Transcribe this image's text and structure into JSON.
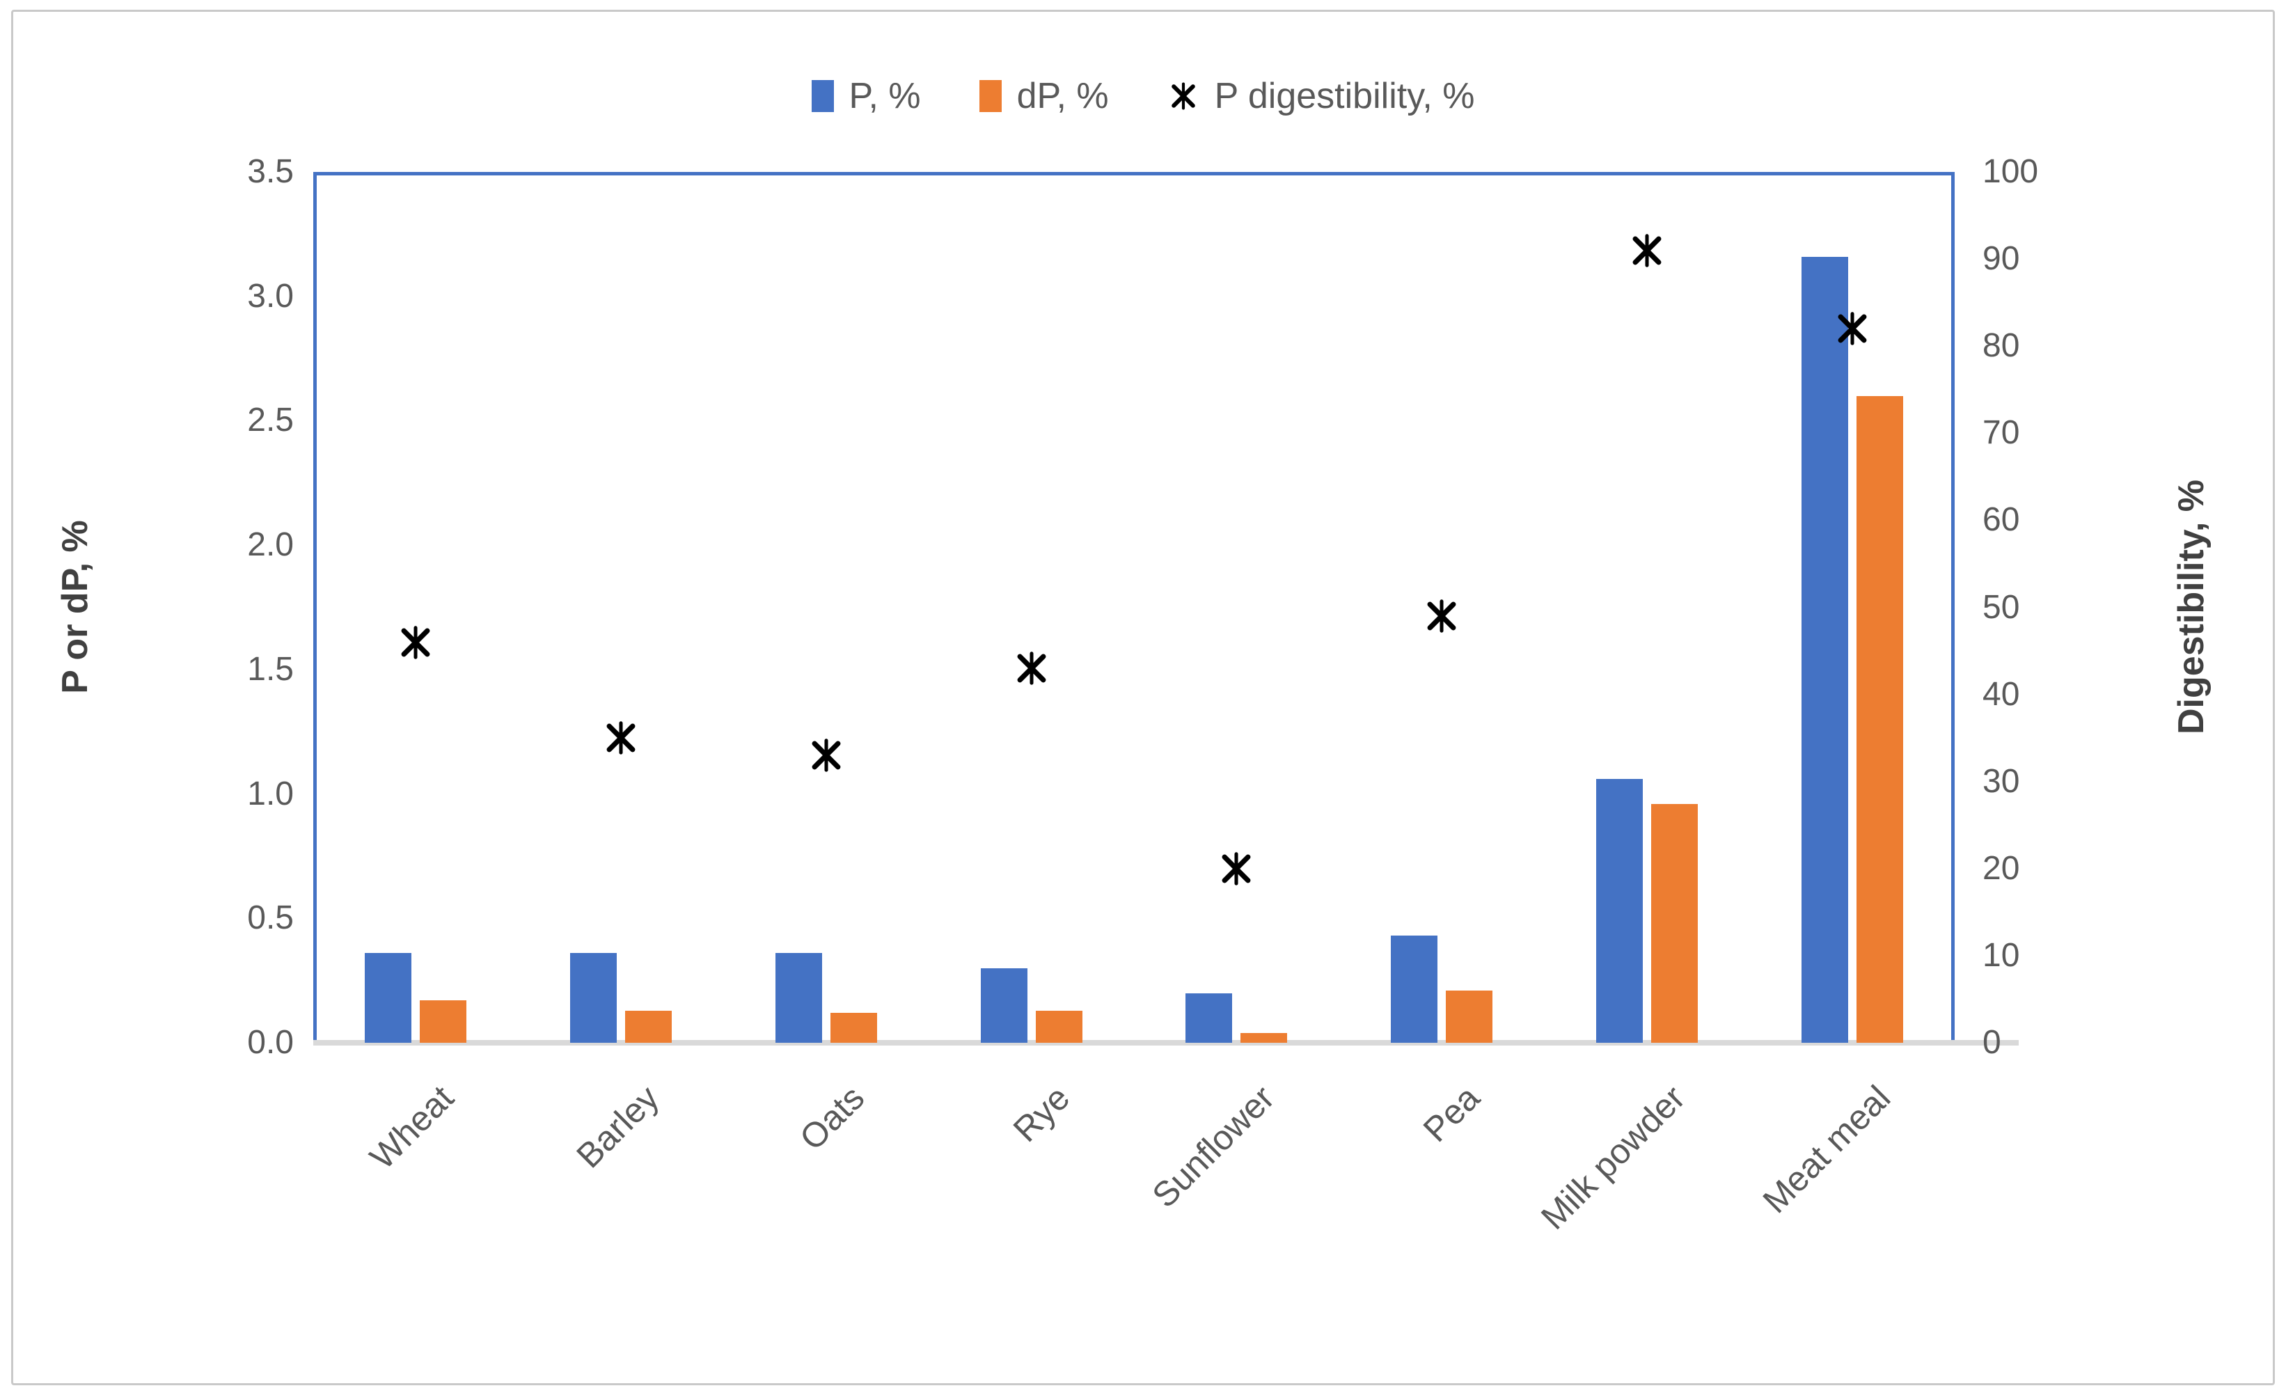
{
  "figure": {
    "legend": [
      {
        "label": "P, %",
        "swatch": "square",
        "color": "#4472C4"
      },
      {
        "label": "dP, %",
        "swatch": "square",
        "color": "#ED7D31"
      },
      {
        "label": "P digestibility, %",
        "swatch": "asterisk",
        "color": "#000000"
      }
    ],
    "left_axis": {
      "title": "P or dP, %",
      "ticks": [
        "0.0",
        "0.5",
        "1.0",
        "1.5",
        "2.0",
        "2.5",
        "3.0",
        "3.5"
      ],
      "min": 0,
      "max": 3.5
    },
    "right_axis": {
      "title": "Digestibility, %",
      "ticks": [
        "0",
        "10",
        "20",
        "30",
        "40",
        "50",
        "60",
        "70",
        "80",
        "90",
        "100"
      ],
      "min": 0,
      "max": 100
    }
  },
  "chart_data": {
    "type": "bar",
    "subtype": "combo-bar-scatter",
    "categories": [
      "Wheat",
      "Barley",
      "Oats",
      "Rye",
      "Sunflower",
      "Pea",
      "Milk powder",
      "Meat meal"
    ],
    "series": [
      {
        "name": "P, %",
        "type": "bar",
        "axis": "left",
        "color": "#4472C4",
        "values": [
          0.36,
          0.36,
          0.36,
          0.3,
          0.2,
          0.43,
          1.06,
          3.16
        ]
      },
      {
        "name": "dP, %",
        "type": "bar",
        "axis": "left",
        "color": "#ED7D31",
        "values": [
          0.17,
          0.13,
          0.12,
          0.13,
          0.04,
          0.21,
          0.96,
          2.6
        ]
      },
      {
        "name": "P digestibility, %",
        "type": "scatter",
        "marker": "asterisk",
        "axis": "right",
        "color": "#000000",
        "values": [
          46,
          35,
          33,
          43,
          20,
          49,
          91,
          82
        ]
      }
    ],
    "title": "",
    "xlabel": "",
    "ylabel_left": "P or dP, %",
    "ylabel_right": "Digestibility, %",
    "left_ylim": [
      0,
      3.5
    ],
    "right_ylim": [
      0,
      100
    ],
    "grid": false,
    "legend_position": "top-center",
    "plot_border_color": "#4472C4",
    "baseline_color": "#d9d9d9"
  }
}
